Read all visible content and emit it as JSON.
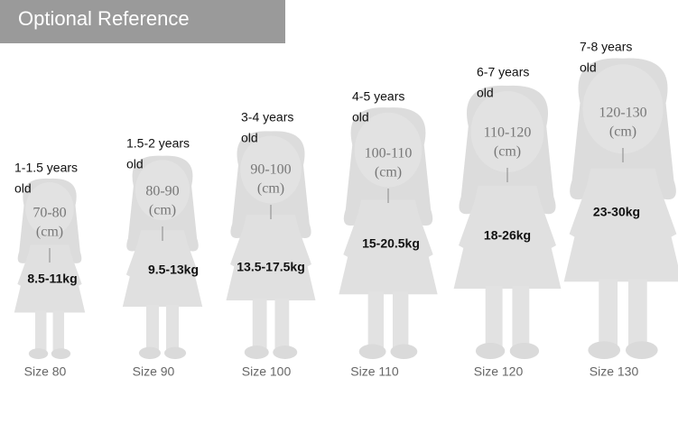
{
  "header": {
    "title": "Optional Reference"
  },
  "figures": [
    {
      "age_lines": [
        "1-1.5 years",
        "old"
      ],
      "height": "70-80",
      "unit": "(cm)",
      "weight": "8.5-11kg",
      "size": "Size 80"
    },
    {
      "age_lines": [
        "1.5-2 years",
        "old"
      ],
      "height": "80-90",
      "unit": "(cm)",
      "weight": "9.5-13kg",
      "size": "Size 90"
    },
    {
      "age_lines": [
        "3-4 years",
        "old"
      ],
      "height": "90-100",
      "unit": "(cm)",
      "weight": "13.5-17.5kg",
      "size": "Size 100"
    },
    {
      "age_lines": [
        "4-5 years",
        "old"
      ],
      "height": "100-110",
      "unit": "(cm)",
      "weight": "15-20.5kg",
      "size": "Size 110"
    },
    {
      "age_lines": [
        "6-7 years",
        "old"
      ],
      "height": "110-120",
      "unit": "(cm)",
      "weight": "18-26kg",
      "size": "Size 120"
    },
    {
      "age_lines": [
        "7-8 years",
        "old"
      ],
      "height": "120-130",
      "unit": "(cm)",
      "weight": "23-30kg",
      "size": "Size 130"
    }
  ]
}
